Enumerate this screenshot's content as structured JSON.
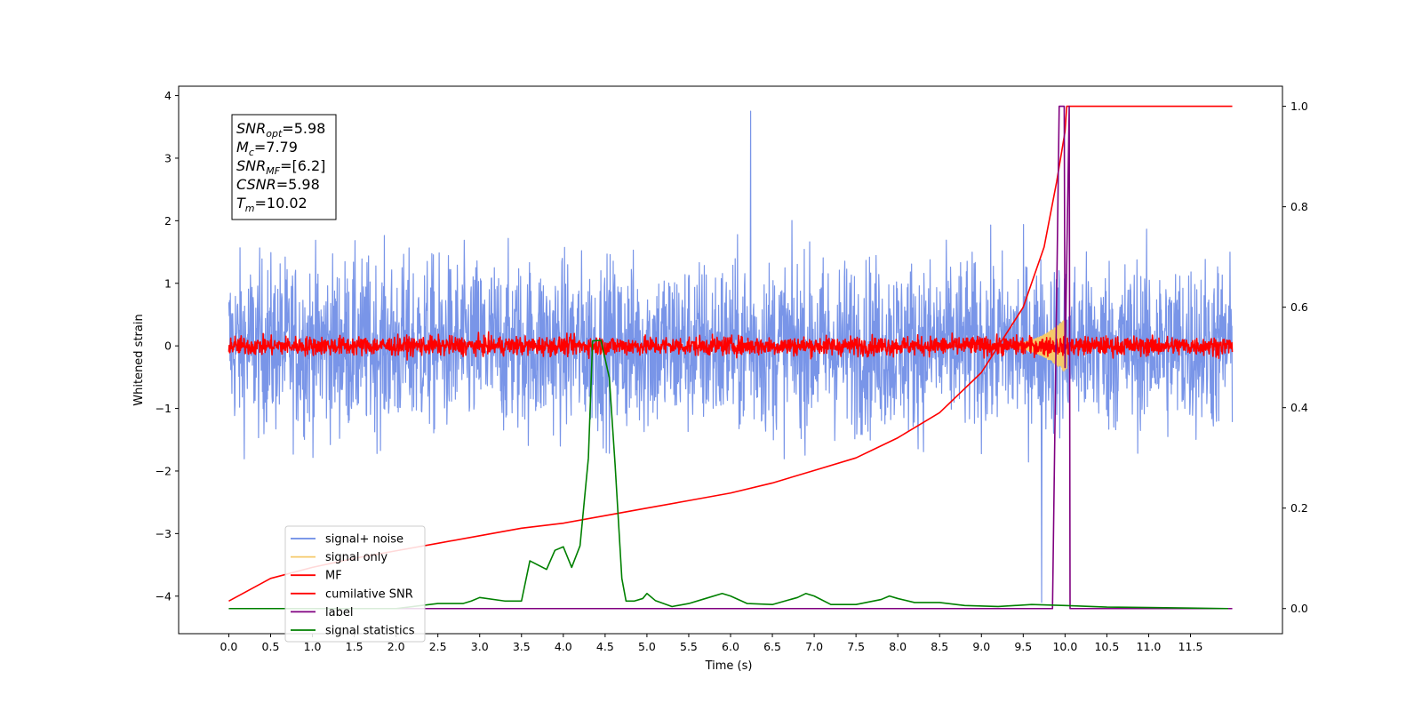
{
  "chart_data": {
    "type": "line",
    "title": "",
    "xlabel": "Time (s)",
    "ylabel": "Whitened strain",
    "ylabel_right": "",
    "xlim": [
      -0.6,
      12.6
    ],
    "ylim": [
      -4.6,
      4.15
    ],
    "ylim_right": [
      -0.05,
      1.04
    ],
    "grid": false,
    "legend_position": "lower-left",
    "x_ticks": [
      "0.0",
      "0.5",
      "1.0",
      "1.5",
      "2.0",
      "2.5",
      "3.0",
      "3.5",
      "4.0",
      "4.5",
      "5.0",
      "5.5",
      "6.0",
      "6.5",
      "7.0",
      "7.5",
      "8.0",
      "8.5",
      "9.0",
      "9.5",
      "10.0",
      "10.5",
      "11.0",
      "11.5"
    ],
    "y_ticks_left": [
      "4",
      "3",
      "2",
      "1",
      "0",
      "−1",
      "−2",
      "−3",
      "−4"
    ],
    "y_ticks_right": [
      "1.0",
      "0.8",
      "0.6",
      "0.4",
      "0.2",
      "0.0"
    ],
    "annotation": {
      "snr_opt_base": "SNR",
      "snr_opt_sub": "opt",
      "snr_opt_value": "=5.98",
      "mc_base": "M",
      "mc_sub": "c",
      "mc_value": "=7.79",
      "snr_mf_base": "SNR",
      "snr_mf_sub": "MF",
      "snr_mf_value": "=[6.2]",
      "csnr_base": "CSNR",
      "csnr_value": "=5.98",
      "tm_base": "T",
      "tm_sub": "m",
      "tm_value": "=10.02"
    },
    "series": [
      {
        "name": "signal+ noise",
        "color": "#6a8ae6",
        "axis": "left",
        "kind": "noise",
        "x_range": [
          0,
          12.0
        ],
        "mean": 0.0,
        "spread": 1.1,
        "peak_max": 3.75,
        "peak_min": -4.1
      },
      {
        "name": "signal only",
        "color": "#f5c96a",
        "axis": "left",
        "kind": "chirp",
        "x_range": [
          9.0,
          10.02
        ],
        "peak": 0.45
      },
      {
        "name": "MF",
        "color": "#ff0000",
        "axis": "left",
        "kind": "noise",
        "x_range": [
          0,
          12.0
        ],
        "mean": 0.0,
        "spread": 0.12,
        "peak_max": 0.55,
        "peak_min": -0.25
      },
      {
        "name": "cumilative SNR",
        "color": "#ff0000",
        "axis": "right",
        "x": [
          0,
          0.5,
          1.0,
          1.5,
          2.0,
          2.5,
          3.0,
          3.5,
          4.0,
          4.5,
          5.0,
          5.5,
          6.0,
          6.5,
          7.0,
          7.5,
          8.0,
          8.5,
          9.0,
          9.5,
          9.75,
          9.9,
          10.0,
          10.02,
          10.5,
          11.0,
          11.5,
          12.0
        ],
        "y": [
          0.015,
          0.06,
          0.082,
          0.1,
          0.115,
          0.13,
          0.145,
          0.16,
          0.17,
          0.185,
          0.2,
          0.215,
          0.23,
          0.25,
          0.275,
          0.3,
          0.34,
          0.39,
          0.47,
          0.6,
          0.72,
          0.85,
          0.95,
          1.0,
          1.0,
          1.0,
          1.0,
          1.0
        ]
      },
      {
        "name": "label",
        "color": "#800080",
        "axis": "right",
        "x": [
          0,
          9.85,
          9.93,
          9.99,
          10.0,
          10.05,
          10.06,
          12.0
        ],
        "y": [
          0.0,
          0.0,
          1.0,
          1.0,
          0.48,
          1.0,
          0.0,
          0.0
        ]
      },
      {
        "name": "signal statistics",
        "color": "#008000",
        "axis": "right",
        "x": [
          0,
          2.0,
          2.5,
          2.8,
          2.9,
          3.0,
          3.3,
          3.5,
          3.6,
          3.8,
          3.9,
          4.0,
          4.1,
          4.2,
          4.3,
          4.35,
          4.45,
          4.55,
          4.62,
          4.7,
          4.75,
          4.85,
          4.95,
          5.0,
          5.1,
          5.3,
          5.5,
          5.7,
          5.9,
          6.0,
          6.2,
          6.5,
          6.8,
          6.9,
          7.0,
          7.2,
          7.5,
          7.8,
          7.9,
          8.0,
          8.2,
          8.5,
          8.8,
          9.2,
          9.6,
          10.0,
          10.5,
          11.0,
          11.5,
          11.95
        ],
        "y": [
          0.0,
          0.0,
          0.01,
          0.01,
          0.015,
          0.022,
          0.015,
          0.015,
          0.095,
          0.078,
          0.116,
          0.123,
          0.082,
          0.125,
          0.3,
          0.533,
          0.534,
          0.46,
          0.285,
          0.06,
          0.015,
          0.015,
          0.02,
          0.03,
          0.016,
          0.004,
          0.01,
          0.02,
          0.03,
          0.025,
          0.01,
          0.008,
          0.022,
          0.03,
          0.025,
          0.008,
          0.008,
          0.018,
          0.025,
          0.02,
          0.012,
          0.012,
          0.006,
          0.004,
          0.008,
          0.006,
          0.003,
          0.002,
          0.001,
          0.0
        ]
      }
    ]
  }
}
